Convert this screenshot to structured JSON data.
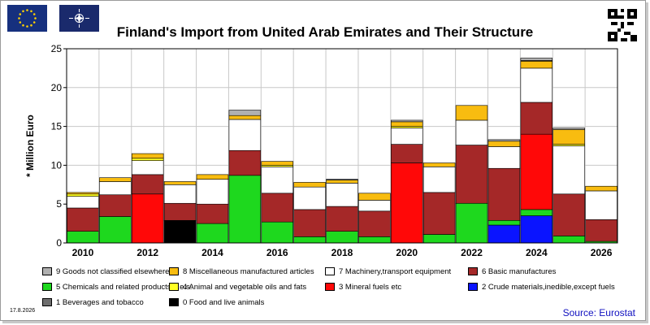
{
  "colors": {
    "cat9": "#b0b0b0",
    "cat8": "#f8bc10",
    "cat7": "#ffffff",
    "cat6": "#a52828",
    "cat5": "#1ed81e",
    "cat4": "#ffff24",
    "cat3": "#ff0808",
    "cat2": "#0a14ff",
    "cat1": "#6e6e6e",
    "cat0": "#000000",
    "plot_bg": "#ffffff",
    "grid": "#c8c8c8",
    "eu_flag": "#16307e",
    "nato_flag": "#1a2a6c",
    "source_text": "#1010c0"
  },
  "header": {
    "title": "Finland's Import from United Arab Emirates and Their Structure",
    "icons": [
      "eu-flag-icon",
      "nato-flag-icon",
      "qr-code-icon"
    ]
  },
  "footer": {
    "date": "17.8.2026",
    "source": "Source: Eurostat"
  },
  "chart_data": {
    "type": "bar",
    "stacked": true,
    "title": "Finland's Import from United Arab Emirates and Their Structure",
    "ylabel": "* Million Euro",
    "xlabel": "",
    "ylim": [
      0,
      25
    ],
    "yticks": [
      0,
      5,
      10,
      15,
      20,
      25
    ],
    "grid": true,
    "legend_position": "bottom",
    "categories": [
      "2010",
      "2011",
      "2012",
      "2013",
      "2014",
      "2015",
      "2016",
      "2017",
      "2018",
      "2019",
      "2020",
      "2021",
      "2022",
      "2023",
      "2024",
      "2025",
      "2026"
    ],
    "xtick_labels": [
      "2010",
      "",
      "2012",
      "",
      "2014",
      "",
      "2016",
      "",
      "2018",
      "",
      "2020",
      "",
      "2022",
      "",
      "2024",
      "",
      "2026"
    ],
    "series": [
      {
        "name": "0 Food and live animals",
        "color_key": "cat0",
        "values": [
          0,
          0,
          0,
          2.9,
          0,
          0,
          0,
          0,
          0,
          0,
          0,
          0,
          0,
          0,
          0,
          0,
          0
        ]
      },
      {
        "name": "2 Crude materials,inedible,except fuels",
        "color_key": "cat2",
        "values": [
          0,
          0,
          0,
          0,
          0,
          0,
          0,
          0,
          0,
          0,
          0,
          0,
          0,
          2.3,
          3.5,
          0,
          0
        ]
      },
      {
        "name": "5 Chemicals and related products,n.e.s.",
        "color_key": "cat5",
        "values": [
          1.5,
          3.4,
          0,
          0,
          2.5,
          8.7,
          2.7,
          0.8,
          1.5,
          0.8,
          0,
          1.1,
          5.1,
          0.6,
          0.8,
          0.9,
          0.2
        ]
      },
      {
        "name": "3 Mineral fuels etc",
        "color_key": "cat3",
        "values": [
          0,
          0,
          6.3,
          0,
          0,
          0,
          0,
          0,
          0,
          0,
          10.3,
          0,
          0,
          0,
          9.7,
          0,
          0
        ]
      },
      {
        "name": "6 Basic manufactures",
        "color_key": "cat6",
        "values": [
          3.0,
          2.8,
          2.5,
          2.2,
          2.5,
          3.2,
          3.7,
          3.5,
          3.2,
          3.3,
          2.4,
          5.4,
          7.5,
          6.7,
          4.1,
          5.4,
          2.8
        ]
      },
      {
        "name": "7 Machinery,transport equipment",
        "color_key": "cat7",
        "values": [
          1.5,
          1.7,
          1.8,
          2.4,
          3.2,
          4.0,
          3.4,
          2.9,
          3.0,
          1.4,
          2.1,
          3.3,
          3.2,
          2.8,
          4.4,
          6.2,
          3.7
        ]
      },
      {
        "name": "4 Animal and vegetable oils and fats",
        "color_key": "cat4",
        "values": [
          0.3,
          0,
          0.3,
          0,
          0,
          0,
          0.2,
          0,
          0,
          0,
          0.2,
          0,
          0,
          0,
          0,
          0.2,
          0
        ]
      },
      {
        "name": "8 Miscellaneous manufactured articles",
        "color_key": "cat8",
        "values": [
          0.2,
          0.5,
          0.6,
          0.4,
          0.6,
          0.5,
          0.5,
          0.6,
          0.4,
          0.9,
          0.6,
          0.5,
          1.9,
          0.7,
          0.9,
          1.9,
          0.6
        ]
      },
      {
        "name": "1 Beverages and tobacco",
        "color_key": "cat1",
        "values": [
          0,
          0,
          0,
          0,
          0,
          0,
          0,
          0,
          0.1,
          0,
          0,
          0,
          0,
          0,
          0.1,
          0,
          0
        ]
      },
      {
        "name": "9 Goods not classified elsewhere",
        "color_key": "cat9",
        "values": [
          0,
          0,
          0,
          0,
          0,
          0.7,
          0,
          0,
          0,
          0,
          0.2,
          0,
          0,
          0.2,
          0.3,
          0.2,
          0
        ]
      }
    ],
    "legend": [
      {
        "label": "9 Goods not classified elsewhere",
        "color_key": "cat9"
      },
      {
        "label": "8 Miscellaneous manufactured articles",
        "color_key": "cat8"
      },
      {
        "label": "7 Machinery,transport equipment",
        "color_key": "cat7"
      },
      {
        "label": "6 Basic manufactures",
        "color_key": "cat6"
      },
      {
        "label": "5 Chemicals and related products,n.e.s.",
        "color_key": "cat5"
      },
      {
        "label": "4 Animal and vegetable oils and fats",
        "color_key": "cat4"
      },
      {
        "label": "3 Mineral fuels etc",
        "color_key": "cat3"
      },
      {
        "label": "2 Crude materials,inedible,except fuels",
        "color_key": "cat2"
      },
      {
        "label": "1 Beverages and tobacco",
        "color_key": "cat1"
      },
      {
        "label": "0 Food and live animals",
        "color_key": "cat0"
      }
    ]
  }
}
